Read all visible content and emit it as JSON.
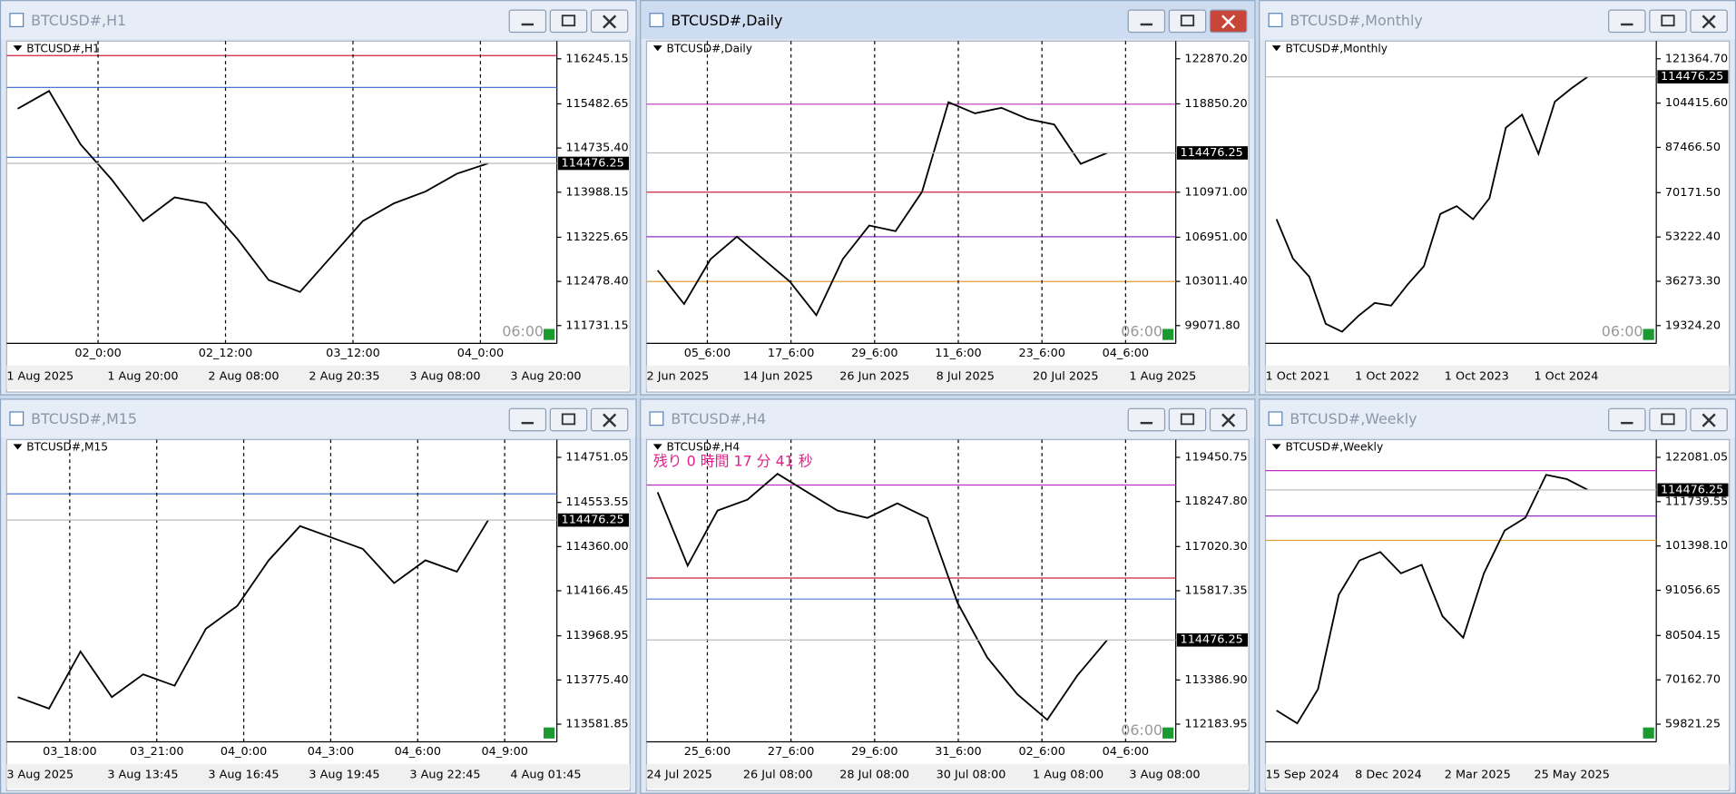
{
  "windows": [
    {
      "title": "BTCUSD#,H1",
      "chart_label": "BTCUSD#,H1",
      "active": false,
      "ylim": [
        111431,
        116545
      ],
      "yticks": [
        116245.15,
        115482.65,
        {
          "value": 114735.4,
          "label": "114735.40"
        },
        113988.15,
        113225.65,
        {
          "value": 112478.4,
          "label": "112478.40"
        },
        111731.15
      ],
      "current_price": 114476.25,
      "timer": "06:00",
      "separators": [
        "02_0:00",
        "02_12:00",
        "03_12:00",
        "04_0:00"
      ],
      "x_labels": [
        "1 Aug 2025",
        "1 Aug 20:00",
        "2 Aug 08:00",
        "2 Aug 20:35",
        "3 Aug 08:00",
        "3 Aug 20:00"
      ],
      "levels": [
        {
          "value": 116300,
          "color": "#d02040"
        },
        {
          "value": 115760,
          "color": "#4a78d8"
        },
        {
          "value": 114578,
          "color": "#4a78d8"
        }
      ],
      "price_path": [
        115400,
        115700,
        114800,
        114200,
        113500,
        113900,
        113800,
        113200,
        112500,
        112300,
        112900,
        113500,
        113800,
        114000,
        114300,
        114476.25
      ]
    },
    {
      "title": "BTCUSD#,Daily",
      "chart_label": "BTCUSD#,Daily",
      "active": true,
      "ylim": [
        97492,
        124450
      ],
      "yticks": [
        {
          "value": 122870.2,
          "label": "122870.20"
        },
        {
          "value": 118850.2,
          "label": "118850.20"
        },
        {
          "value": 110971,
          "label": "110971.00"
        },
        {
          "value": 106951,
          "label": "106951.00"
        },
        {
          "value": 103011.4,
          "label": "103011.40"
        },
        {
          "value": 99071.8,
          "label": "99071.80"
        }
      ],
      "current_price": 114476.25,
      "timer": "06:00",
      "separators": [
        "05_6:00",
        "17_6:00",
        "29_6:00",
        "11_6:00",
        "23_6:00",
        "04_6:00"
      ],
      "x_labels": [
        "2 Jun 2025",
        "14 Jun 2025",
        "26 Jun 2025",
        "8 Jul 2025",
        "20 Jul 2025",
        "1 Aug 2025"
      ],
      "levels": [
        {
          "value": 118821,
          "color": "#c030c0"
        },
        {
          "value": 110971,
          "color": "#d02040"
        },
        {
          "value": 107000,
          "color": "#9030c0"
        },
        {
          "value": 103000,
          "color": "#e0a030"
        }
      ],
      "price_path": [
        104000,
        101000,
        105000,
        107000,
        105000,
        103000,
        100000,
        105000,
        108000,
        107500,
        111000,
        119000,
        118000,
        118500,
        117500,
        117000,
        113500,
        114476.25
      ]
    },
    {
      "title": "BTCUSD#,Monthly",
      "chart_label": "BTCUSD#,Monthly",
      "active": false,
      "ylim": [
        12550,
        128139
      ],
      "yticks": [
        {
          "value": 121364.7,
          "label": "121364.70"
        },
        {
          "value": 104415.6,
          "label": "104415.60"
        },
        {
          "value": 87466.5,
          "label": "87466.50"
        },
        {
          "value": 70171.5,
          "label": "70171.50"
        },
        {
          "value": 53222.4,
          "label": "53222.40"
        },
        {
          "value": 36273.3,
          "label": "36273.30"
        },
        {
          "value": 19324.2,
          "label": "19324.20"
        }
      ],
      "current_price": 114476.25,
      "timer": "06:00",
      "separators": [],
      "x_labels": [
        "1 Oct 2021",
        "1 Oct 2022",
        "1 Oct 2023",
        "1 Oct 2024"
      ],
      "levels": [],
      "price_path": [
        60000,
        45000,
        38000,
        20000,
        17000,
        23000,
        28000,
        27000,
        35000,
        42000,
        62000,
        65000,
        60000,
        68000,
        95000,
        100000,
        85000,
        105000,
        110000,
        114476.25
      ]
    },
    {
      "title": "BTCUSD#,M15",
      "chart_label": "BTCUSD#,M15",
      "active": false,
      "ylim": [
        113504.2,
        114828.7
      ],
      "yticks": [
        {
          "value": 114751.05,
          "label": "114751.05"
        },
        114553.55,
        {
          "value": 114360,
          "label": "114360.00"
        },
        114166.45,
        113968.95,
        {
          "value": 113775.4,
          "label": "113775.40"
        },
        113581.85
      ],
      "current_price": 114476.25,
      "timer": null,
      "separators": [
        "03_18:00",
        "03_21:00",
        "04_0:00",
        "04_3:00",
        "04_6:00",
        "04_9:00"
      ],
      "x_labels": [
        "3 Aug 2025",
        "3 Aug 13:45",
        "3 Aug 16:45",
        "3 Aug 19:45",
        "3 Aug 22:45",
        "4 Aug 01:45"
      ],
      "levels": [
        {
          "value": 114591,
          "color": "#4a78d8"
        }
      ],
      "price_path": [
        113700,
        113650,
        113900,
        113700,
        113800,
        113750,
        114000,
        114100,
        114300,
        114450,
        114400,
        114350,
        114200,
        114300,
        114250,
        114476.25
      ]
    },
    {
      "title": "BTCUSD#,H4",
      "chart_label": "BTCUSD#,H4",
      "active": false,
      "ylim": [
        111701,
        119933
      ],
      "yticks": [
        119450.75,
        {
          "value": 118247.8,
          "label": "118247.80"
        },
        {
          "value": 117020.3,
          "label": "117020.30"
        },
        115817.35,
        {
          "value": 113386.9,
          "label": "113386.90"
        },
        112183.95
      ],
      "current_price": 114476.25,
      "timer": "06:00",
      "countdown": "残り 0 時間 17 分 41 秒",
      "separators": [
        "25_6:00",
        "27_6:00",
        "29_6:00",
        "31_6:00",
        "02_6:00",
        "04_6:00"
      ],
      "x_labels": [
        "24 Jul 2025",
        "26 Jul 08:00",
        "28 Jul 08:00",
        "30 Jul 08:00",
        "1 Aug 08:00",
        "3 Aug 08:00"
      ],
      "levels": [
        {
          "value": 118697,
          "color": "#c030c0"
        },
        {
          "value": 116164,
          "color": "#d02040"
        },
        {
          "value": 115590,
          "color": "#4a78d8"
        }
      ],
      "price_path": [
        118500,
        116500,
        118000,
        118300,
        119000,
        118500,
        118000,
        117800,
        118200,
        117800,
        115500,
        114000,
        113000,
        112300,
        113500,
        114476.25
      ]
    },
    {
      "title": "BTCUSD#,Weekly",
      "chart_label": "BTCUSD#,Weekly",
      "active": false,
      "ylim": [
        55688,
        126214
      ],
      "yticks": [
        {
          "value": 122081.05,
          "label": "122081.05"
        },
        111739.55,
        {
          "value": 101398.1,
          "label": "101398.10"
        },
        91056.65,
        80504.15,
        {
          "value": 70162.7,
          "label": "70162.70"
        },
        59821.25
      ],
      "current_price": 114476.25,
      "timer": null,
      "separators": [],
      "x_labels": [
        "15 Sep 2024",
        "8 Dec 2024",
        "2 Mar 2025",
        "25 May 2025"
      ],
      "levels": [
        {
          "value": 118981,
          "color": "#c030c0"
        },
        {
          "value": 108400,
          "color": "#9030c0"
        },
        {
          "value": 102700,
          "color": "#e0a030"
        }
      ],
      "price_path": [
        63000,
        60000,
        68000,
        90000,
        98000,
        100000,
        95000,
        97000,
        85000,
        80000,
        95000,
        105000,
        108000,
        118000,
        117000,
        114476.25
      ]
    }
  ]
}
